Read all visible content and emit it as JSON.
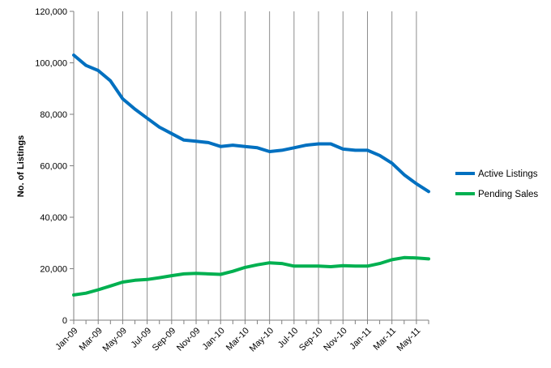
{
  "chart_data": {
    "type": "line",
    "title": "",
    "xlabel": "",
    "ylabel": "No. of Listings",
    "ylim": [
      0,
      120000
    ],
    "yticks": [
      "0",
      "20,000",
      "40,000",
      "60,000",
      "80,000",
      "100,000",
      "120,000"
    ],
    "ytick_values": [
      0,
      20000,
      40000,
      60000,
      80000,
      100000,
      120000
    ],
    "xtick_labels": [
      "Jan-09",
      "Mar-09",
      "May-09",
      "Jul-09",
      "Sep-09",
      "Nov-09",
      "Jan-10",
      "Mar-10",
      "May-10",
      "Jul-10",
      "Sep-10",
      "Nov-10",
      "Jan-11",
      "Mar-11",
      "May-11"
    ],
    "x": [
      "Jan-09",
      "Feb-09",
      "Mar-09",
      "Apr-09",
      "May-09",
      "Jun-09",
      "Jul-09",
      "Aug-09",
      "Sep-09",
      "Oct-09",
      "Nov-09",
      "Dec-09",
      "Jan-10",
      "Feb-10",
      "Mar-10",
      "Apr-10",
      "May-10",
      "Jun-10",
      "Jul-10",
      "Aug-10",
      "Sep-10",
      "Oct-10",
      "Nov-10",
      "Dec-10",
      "Jan-11",
      "Feb-11",
      "Mar-11",
      "Apr-11",
      "May-11",
      "Jun-11"
    ],
    "grid": "vertical",
    "legend": "right",
    "series": [
      {
        "name": "Active Listings",
        "color": "#0070C0",
        "values": [
          103000,
          99000,
          97000,
          93000,
          86000,
          82000,
          78500,
          75000,
          72500,
          70000,
          69500,
          69000,
          67500,
          68000,
          67500,
          67000,
          65500,
          66000,
          67000,
          68000,
          68500,
          68500,
          66500,
          66000,
          66000,
          64000,
          61000,
          56500,
          53000,
          50000
        ]
      },
      {
        "name": "Pending Sales",
        "color": "#00B050",
        "values": [
          9800,
          10500,
          11800,
          13300,
          14800,
          15500,
          15800,
          16500,
          17300,
          18000,
          18200,
          18000,
          17800,
          19000,
          20500,
          21500,
          22300,
          22000,
          21000,
          21000,
          21000,
          20800,
          21200,
          21000,
          21000,
          22000,
          23500,
          24300,
          24200,
          23800
        ]
      }
    ]
  }
}
